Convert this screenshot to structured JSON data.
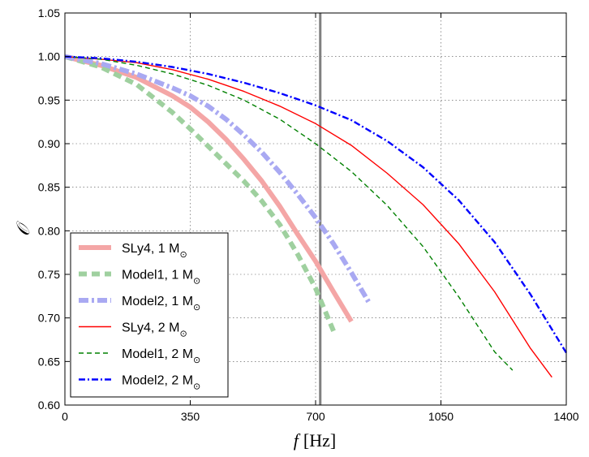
{
  "chart_data": {
    "type": "line",
    "xlabel_var": "f",
    "xlabel_unit": "[Hz]",
    "ylabel": "𝒪",
    "xlim": [
      0,
      1400
    ],
    "ylim": [
      0.6,
      1.05
    ],
    "xticks": [
      0,
      350,
      700,
      1050,
      1400
    ],
    "xtick_labels": [
      "0",
      "350",
      "700",
      "1050",
      "1400"
    ],
    "yticks": [
      0.6,
      0.65,
      0.7,
      0.75,
      0.8,
      0.85,
      0.9,
      0.95,
      1.0,
      1.05
    ],
    "ytick_labels": [
      "0.60",
      "0.65",
      "0.70",
      "0.75",
      "0.80",
      "0.85",
      "0.90",
      "0.95",
      "1.00",
      "1.05"
    ],
    "grid": true,
    "vertical_line_x": 713,
    "legend_position": "lower-left",
    "series": [
      {
        "name_main": "SLy4, 1 M",
        "name_sub": "⊙",
        "color": "#f4a6a6",
        "style": "thick-solid",
        "x": [
          0,
          100,
          200,
          300,
          350,
          400,
          450,
          500,
          550,
          600,
          650,
          700,
          750,
          800
        ],
        "y": [
          1.0,
          0.99,
          0.976,
          0.955,
          0.942,
          0.925,
          0.905,
          0.882,
          0.857,
          0.828,
          0.796,
          0.765,
          0.73,
          0.696
        ]
      },
      {
        "name_main": "Model1, 1 M",
        "name_sub": "⊙",
        "color": "#9fd09f",
        "style": "thick-dashed",
        "x": [
          0,
          100,
          200,
          300,
          350,
          400,
          450,
          500,
          550,
          600,
          650,
          700,
          750
        ],
        "y": [
          1.0,
          0.988,
          0.968,
          0.936,
          0.917,
          0.897,
          0.877,
          0.857,
          0.834,
          0.807,
          0.773,
          0.734,
          0.685
        ]
      },
      {
        "name_main": "Model2, 1 M",
        "name_sub": "⊙",
        "color": "#a9a9f2",
        "style": "thick-dashdot",
        "x": [
          0,
          100,
          200,
          300,
          350,
          400,
          450,
          500,
          550,
          600,
          650,
          700,
          750,
          800,
          850
        ],
        "y": [
          1.0,
          0.992,
          0.98,
          0.964,
          0.955,
          0.943,
          0.928,
          0.91,
          0.89,
          0.867,
          0.842,
          0.815,
          0.785,
          0.752,
          0.717
        ]
      },
      {
        "name_main": "SLy4, 2 M",
        "name_sub": "⊙",
        "color": "#ff0000",
        "style": "thin-solid",
        "x": [
          0,
          100,
          200,
          300,
          400,
          500,
          600,
          700,
          800,
          900,
          1000,
          1100,
          1200,
          1300,
          1360
        ],
        "y": [
          1.0,
          0.997,
          0.993,
          0.985,
          0.974,
          0.96,
          0.943,
          0.923,
          0.898,
          0.866,
          0.83,
          0.785,
          0.73,
          0.665,
          0.632
        ]
      },
      {
        "name_main": "Model1, 2 M",
        "name_sub": "⊙",
        "color": "#008000",
        "style": "thin-dashed",
        "x": [
          0,
          100,
          200,
          300,
          400,
          500,
          600,
          700,
          800,
          900,
          1000,
          1100,
          1200,
          1250
        ],
        "y": [
          1.0,
          0.997,
          0.99,
          0.98,
          0.967,
          0.95,
          0.928,
          0.9,
          0.868,
          0.829,
          0.782,
          0.724,
          0.661,
          0.64
        ]
      },
      {
        "name_main": "Model2, 2 M",
        "name_sub": "⊙",
        "color": "#0000ff",
        "style": "thin-dashdot",
        "x": [
          0,
          100,
          200,
          300,
          400,
          500,
          600,
          700,
          800,
          900,
          1000,
          1100,
          1200,
          1300,
          1400
        ],
        "y": [
          1.0,
          0.998,
          0.994,
          0.988,
          0.98,
          0.97,
          0.958,
          0.944,
          0.927,
          0.903,
          0.873,
          0.835,
          0.787,
          0.727,
          0.66
        ]
      }
    ]
  }
}
